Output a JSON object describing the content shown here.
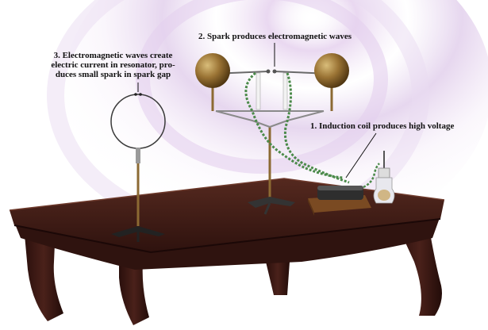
{
  "captions": {
    "step_3": "3. Electromagnetic waves create\nelectric current in resonator, pro-\nduces small spark  in spark gap",
    "step_2": "2. Spark produces electromagnetic waves",
    "step_1": "1. Induction coil produces high voltage"
  },
  "colors": {
    "background": "#ffffff",
    "wave_glow": "#d9c2e6",
    "table_wood": "#3b1a15",
    "table_top": "#4a221c",
    "brass_sphere": "#a07a3a",
    "coil_wire": "#4b8a4a"
  }
}
